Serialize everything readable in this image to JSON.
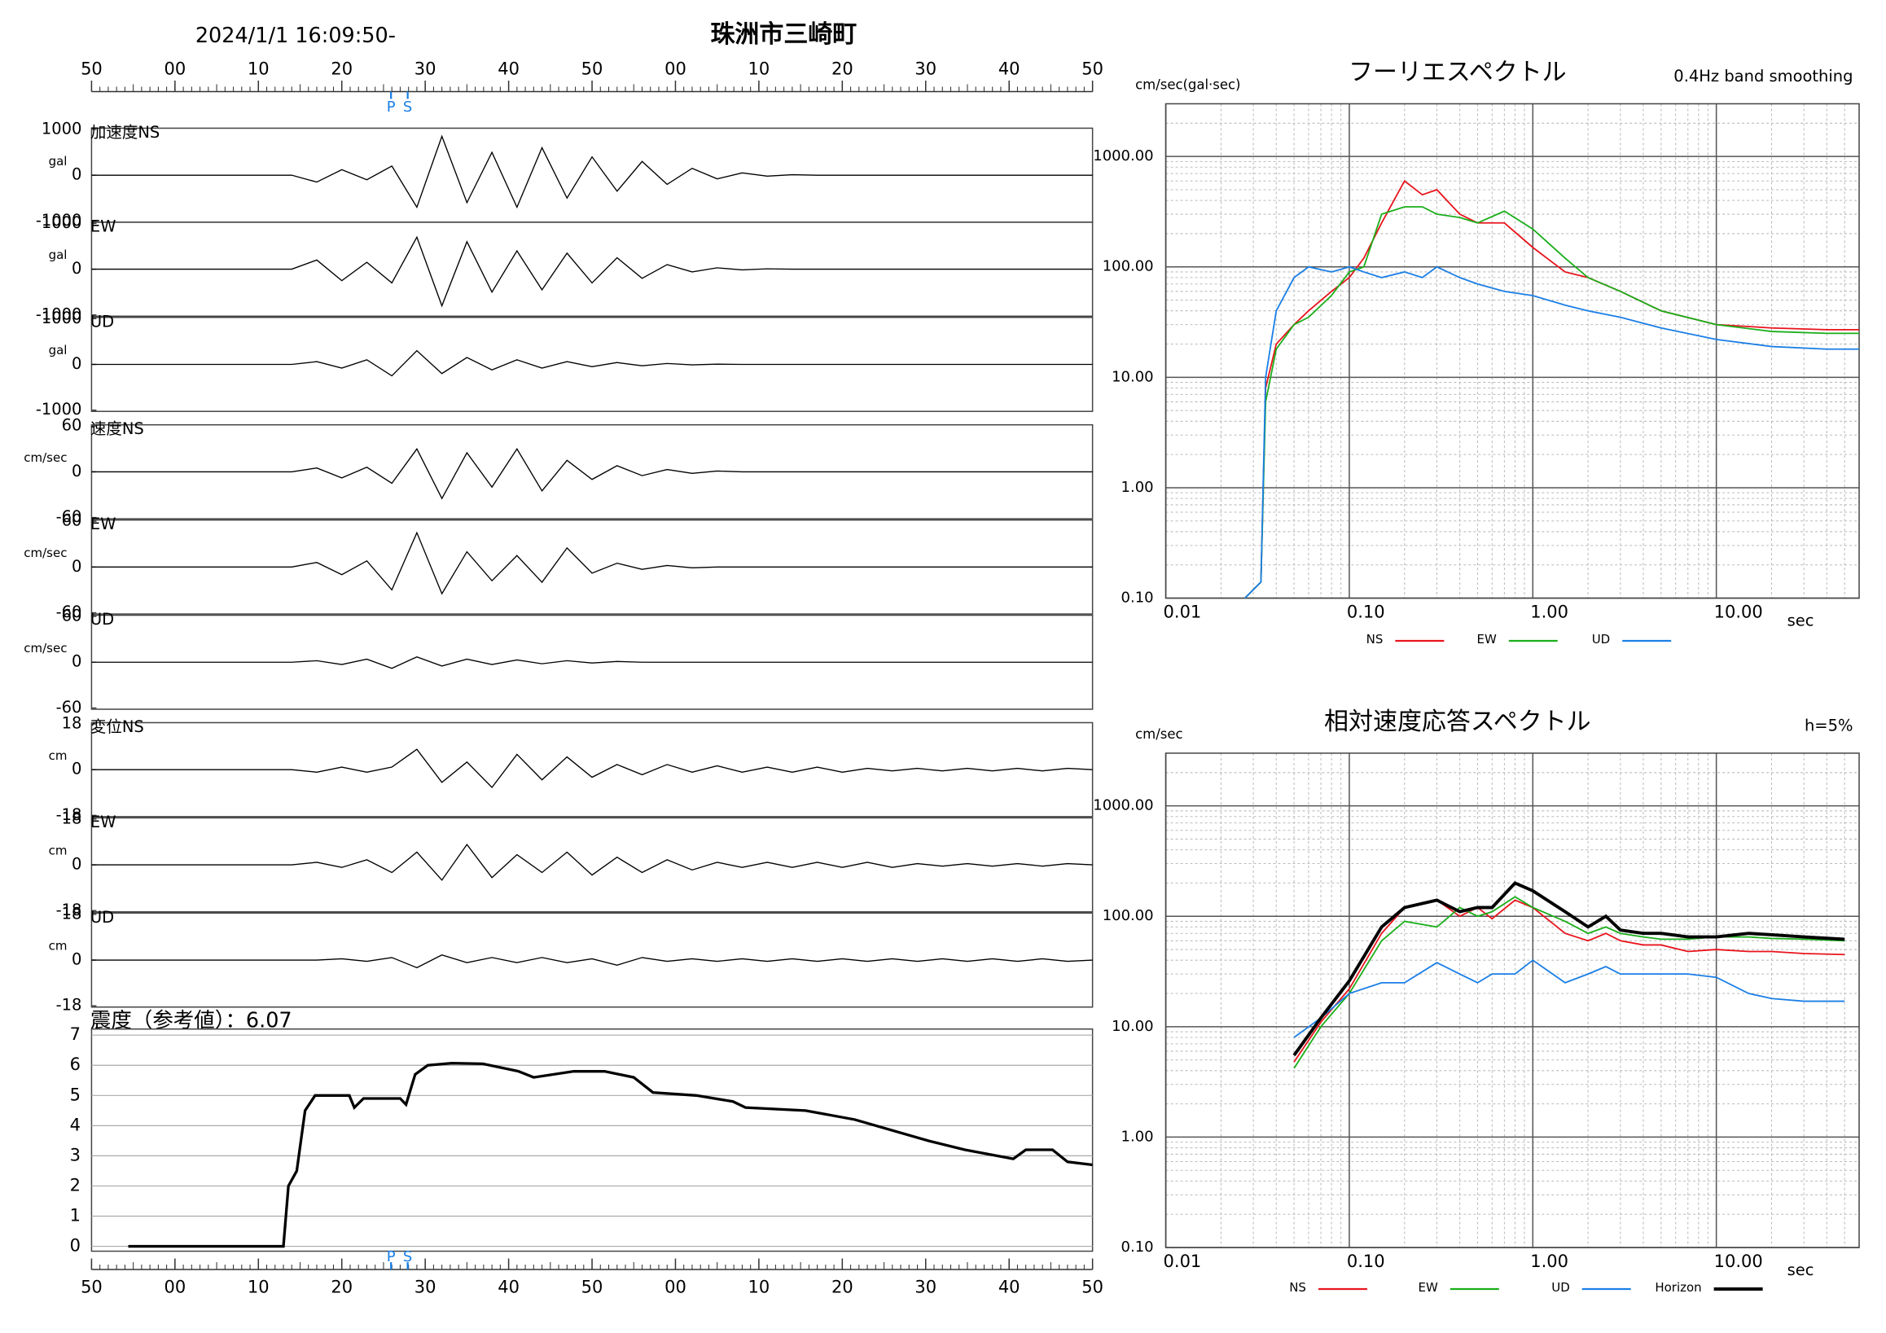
{
  "chart_data": [
    {
      "type": "waveform",
      "title": "珠洲市三崎町",
      "subtitle": "2024/1/1 16:09:50-",
      "xlim": [
        0,
        120
      ],
      "xticks": [
        {
          "value": 0,
          "label": "50"
        },
        {
          "value": 10,
          "label": "00"
        },
        {
          "value": 20,
          "label": "10"
        },
        {
          "value": 30,
          "label": "20"
        },
        {
          "value": 40,
          "label": "30"
        },
        {
          "value": 50,
          "label": "40"
        },
        {
          "value": 60,
          "label": "50"
        },
        {
          "value": 70,
          "label": "00"
        },
        {
          "value": 80,
          "label": "10"
        },
        {
          "value": 90,
          "label": "20"
        },
        {
          "value": 100,
          "label": "30"
        },
        {
          "value": 110,
          "label": "40"
        },
        {
          "value": 120,
          "label": "50"
        }
      ],
      "phases": [
        {
          "label": "P",
          "x": 35.9
        },
        {
          "label": "S",
          "x": 37.9
        }
      ],
      "x": [
        0,
        3,
        6,
        9,
        12,
        15,
        18,
        21,
        24,
        27,
        30,
        33,
        36,
        39,
        42,
        45,
        48,
        51,
        54,
        57,
        60,
        63,
        66,
        69,
        72,
        75,
        78,
        81,
        84,
        87,
        90,
        93,
        96,
        99,
        102,
        105,
        108,
        111,
        114,
        117,
        120
      ],
      "series": [
        {
          "name": "加速度NS",
          "unit": "gal",
          "color": "#000000",
          "ylim": [
            -1000,
            1000
          ],
          "yticks": [
            1000,
            0,
            -1000
          ],
          "values": [
            0,
            0,
            0,
            0,
            0,
            0,
            0,
            0,
            0,
            -150,
            120,
            -100,
            200,
            -700,
            850,
            -600,
            500,
            -700,
            600,
            -500,
            400,
            -350,
            300,
            -200,
            150,
            -80,
            50,
            -20,
            10,
            0,
            0,
            0,
            0,
            0,
            0,
            0,
            0,
            0,
            0,
            0,
            0
          ]
        },
        {
          "name": "EW",
          "unit": "gal",
          "color": "#000000",
          "ylim": [
            -1000,
            1000
          ],
          "yticks": [
            1000,
            0,
            -1000
          ],
          "values": [
            0,
            0,
            0,
            0,
            0,
            0,
            0,
            0,
            0,
            200,
            -250,
            150,
            -300,
            700,
            -800,
            600,
            -500,
            400,
            -450,
            350,
            -300,
            250,
            -200,
            100,
            -60,
            30,
            -15,
            8,
            0,
            0,
            0,
            0,
            0,
            0,
            0,
            0,
            0,
            0,
            0,
            0,
            0
          ]
        },
        {
          "name": "UD",
          "unit": "gal",
          "color": "#000000",
          "ylim": [
            -1000,
            1000
          ],
          "yticks": [
            1000,
            0,
            -1000
          ],
          "values": [
            0,
            0,
            0,
            0,
            0,
            0,
            0,
            0,
            0,
            60,
            -80,
            100,
            -250,
            300,
            -200,
            150,
            -120,
            100,
            -80,
            60,
            -50,
            40,
            -30,
            20,
            -10,
            5,
            0,
            0,
            0,
            0,
            0,
            0,
            0,
            0,
            0,
            0,
            0,
            0,
            0,
            0,
            0
          ]
        },
        {
          "name": "速度NS",
          "unit": "cm/sec",
          "color": "#000000",
          "ylim": [
            -60,
            60
          ],
          "yticks": [
            60,
            0,
            -60
          ],
          "values": [
            0,
            0,
            0,
            0,
            0,
            0,
            0,
            0,
            0,
            5,
            -8,
            6,
            -15,
            30,
            -35,
            25,
            -20,
            30,
            -25,
            15,
            -10,
            8,
            -5,
            3,
            -2,
            1,
            0,
            0,
            0,
            0,
            0,
            0,
            0,
            0,
            0,
            0,
            0,
            0,
            0,
            0,
            0
          ]
        },
        {
          "name": "EW",
          "unit": "cm/sec",
          "color": "#000000",
          "ylim": [
            -60,
            60
          ],
          "yticks": [
            60,
            0,
            -60
          ],
          "values": [
            0,
            0,
            0,
            0,
            0,
            0,
            0,
            0,
            0,
            6,
            -10,
            8,
            -30,
            45,
            -35,
            20,
            -18,
            15,
            -20,
            25,
            -8,
            5,
            -3,
            2,
            -1,
            0,
            0,
            0,
            0,
            0,
            0,
            0,
            0,
            0,
            0,
            0,
            0,
            0,
            0,
            0,
            0
          ]
        },
        {
          "name": "UD",
          "unit": "cm/sec",
          "color": "#000000",
          "ylim": [
            -60,
            60
          ],
          "yticks": [
            60,
            0,
            -60
          ],
          "values": [
            0,
            0,
            0,
            0,
            0,
            0,
            0,
            0,
            0,
            2,
            -3,
            4,
            -8,
            7,
            -5,
            4,
            -3,
            3,
            -2,
            2,
            -1,
            1,
            0,
            0,
            0,
            0,
            0,
            0,
            0,
            0,
            0,
            0,
            0,
            0,
            0,
            0,
            0,
            0,
            0,
            0,
            0
          ]
        },
        {
          "name": "変位NS",
          "unit": "cm",
          "color": "#000000",
          "ylim": [
            -18,
            18
          ],
          "yticks": [
            18,
            0,
            -18
          ],
          "values": [
            0,
            0,
            0,
            0,
            0,
            0,
            0,
            0,
            0,
            -1,
            1,
            -1,
            1,
            8,
            -5,
            3,
            -7,
            6,
            -4,
            5,
            -3,
            2,
            -2,
            2,
            -1,
            1.5,
            -1,
            1,
            -1,
            1,
            -1,
            0.5,
            -0.5,
            0.5,
            -0.5,
            0.5,
            -0.5,
            0.5,
            -0.5,
            0.5,
            0
          ]
        },
        {
          "name": "EW",
          "unit": "cm",
          "color": "#000000",
          "ylim": [
            -18,
            18
          ],
          "yticks": [
            18,
            0,
            -18
          ],
          "values": [
            0,
            0,
            0,
            0,
            0,
            0,
            0,
            0,
            0,
            1,
            -1,
            2,
            -3,
            5,
            -6,
            8,
            -5,
            4,
            -3,
            5,
            -4,
            3,
            -3,
            2,
            -2,
            1,
            -1,
            1,
            -1,
            1,
            -1,
            1,
            -1,
            0.5,
            -0.5,
            0.5,
            -0.5,
            0.5,
            -0.5,
            0.5,
            0
          ]
        },
        {
          "name": "UD",
          "unit": "cm",
          "color": "#000000",
          "ylim": [
            -18,
            18
          ],
          "yticks": [
            18,
            0,
            -18
          ],
          "values": [
            0,
            0,
            0,
            0,
            0,
            0,
            0,
            0,
            0,
            0,
            0.5,
            -0.5,
            1,
            -3,
            2,
            -1,
            1,
            -1,
            1,
            -1,
            0.5,
            -2,
            1,
            -0.5,
            0.5,
            -0.5,
            0.5,
            -0.5,
            0.5,
            -0.5,
            0.5,
            -0.5,
            0.5,
            -0.5,
            0.5,
            -0.5,
            0.5,
            -0.5,
            0.5,
            -0.5,
            0
          ]
        }
      ]
    },
    {
      "type": "step",
      "title": "震度（参考値）：6.07",
      "color": "#000000",
      "grid": true,
      "xlim": [
        0,
        120
      ],
      "xticks": [
        {
          "value": 0,
          "label": "50"
        },
        {
          "value": 10,
          "label": "00"
        },
        {
          "value": 20,
          "label": "10"
        },
        {
          "value": 30,
          "label": "20"
        },
        {
          "value": 40,
          "label": "30"
        },
        {
          "value": 50,
          "label": "40"
        },
        {
          "value": 60,
          "label": "50"
        },
        {
          "value": 70,
          "label": "00"
        },
        {
          "value": 80,
          "label": "10"
        },
        {
          "value": 90,
          "label": "20"
        },
        {
          "value": 100,
          "label": "30"
        },
        {
          "value": 110,
          "label": "40"
        },
        {
          "value": 120,
          "label": "50"
        }
      ],
      "phases": [
        {
          "label": "P",
          "x": 35.9
        },
        {
          "label": "S",
          "x": 37.9
        }
      ],
      "ylim": [
        0,
        7
      ],
      "yticks": [
        0,
        1,
        2,
        3,
        4,
        5,
        6,
        7
      ],
      "x": [
        4.4,
        23,
        23.6,
        24.6,
        25.6,
        26.8,
        30.9,
        31.5,
        32.6,
        37,
        37.7,
        38.8,
        40.3,
        43.2,
        46.9,
        51.2,
        53,
        57.8,
        61.5,
        65,
        67.3,
        72.5,
        76.9,
        78.4,
        85.6,
        91.5,
        100.3,
        104.7,
        110.5,
        112,
        115.2,
        117,
        120
      ],
      "values": [
        0,
        0,
        2,
        2.5,
        4.5,
        5,
        5,
        4.6,
        4.9,
        4.9,
        4.7,
        5.7,
        6,
        6.07,
        6.05,
        5.8,
        5.6,
        5.8,
        5.8,
        5.6,
        5.1,
        5,
        4.8,
        4.6,
        4.5,
        4.2,
        3.5,
        3.2,
        2.9,
        3.2,
        3.2,
        2.8,
        2.7
      ]
    },
    {
      "type": "spectrum",
      "title": "フーリエスペクトル",
      "subtitle": "0.4Hz band smoothing",
      "y_label": "cm/sec(gal·sec)",
      "x_label": "sec",
      "xscale": "log",
      "yscale": "log",
      "grid": true,
      "xlim": [
        0.01,
        60
      ],
      "xticks": [
        {
          "value": 0.01,
          "label": "0.01"
        },
        {
          "value": 0.1,
          "label": "0.10"
        },
        {
          "value": 1,
          "label": "1.00"
        },
        {
          "value": 10,
          "label": "10.00"
        }
      ],
      "ylim": [
        0.1,
        3000
      ],
      "yticks": [
        {
          "value": 0.1,
          "label": "0.10"
        },
        {
          "value": 1,
          "label": "1.00"
        },
        {
          "value": 10,
          "label": "10.00"
        },
        {
          "value": 100,
          "label": "100.00"
        },
        {
          "value": 1000,
          "label": "1000.00"
        }
      ],
      "x": [
        0.027,
        0.033,
        0.035,
        0.04,
        0.05,
        0.06,
        0.08,
        0.1,
        0.12,
        0.15,
        0.2,
        0.25,
        0.3,
        0.4,
        0.5,
        0.7,
        1.0,
        1.5,
        2,
        3,
        5,
        10,
        20,
        40,
        60
      ],
      "series": [
        {
          "name": "NS",
          "color": "#e8141c",
          "values": [
            0.1,
            0.14,
            8,
            20,
            30,
            40,
            60,
            80,
            120,
            250,
            600,
            450,
            500,
            300,
            250,
            250,
            150,
            90,
            80,
            60,
            40,
            30,
            28,
            27,
            27
          ]
        },
        {
          "name": "EW",
          "color": "#1aae1a",
          "values": [
            0.1,
            0.14,
            6,
            18,
            30,
            35,
            55,
            90,
            100,
            300,
            350,
            350,
            300,
            280,
            250,
            320,
            220,
            120,
            80,
            60,
            40,
            30,
            26,
            25,
            25
          ]
        },
        {
          "name": "UD",
          "color": "#1a7fe6",
          "values": [
            0.1,
            0.14,
            10,
            40,
            80,
            100,
            90,
            100,
            90,
            80,
            90,
            80,
            100,
            80,
            70,
            60,
            55,
            45,
            40,
            35,
            28,
            22,
            19,
            18,
            18
          ]
        }
      ]
    },
    {
      "type": "spectrum",
      "title": "相対速度応答スペクトル",
      "subtitle": "h=5%",
      "y_label": "cm/sec",
      "x_label": "sec",
      "xscale": "log",
      "yscale": "log",
      "grid": true,
      "xlim": [
        0.01,
        60
      ],
      "xticks": [
        {
          "value": 0.01,
          "label": "0.01"
        },
        {
          "value": 0.1,
          "label": "0.10"
        },
        {
          "value": 1,
          "label": "1.00"
        },
        {
          "value": 10,
          "label": "10.00"
        }
      ],
      "ylim": [
        0.1,
        3000
      ],
      "yticks": [
        {
          "value": 0.1,
          "label": "0.10"
        },
        {
          "value": 1,
          "label": "1.00"
        },
        {
          "value": 10,
          "label": "10.00"
        },
        {
          "value": 100,
          "label": "100.00"
        },
        {
          "value": 1000,
          "label": "1000.00"
        }
      ],
      "x": [
        0.05,
        0.07,
        0.1,
        0.15,
        0.2,
        0.3,
        0.4,
        0.5,
        0.6,
        0.8,
        1.0,
        1.5,
        2,
        2.5,
        3,
        4,
        5,
        7,
        10,
        15,
        20,
        30,
        50
      ],
      "series": [
        {
          "name": "NS",
          "color": "#e8141c",
          "values": [
            4.8,
            11,
            22,
            70,
            120,
            140,
            100,
            120,
            95,
            140,
            120,
            70,
            60,
            70,
            60,
            55,
            55,
            48,
            50,
            48,
            48,
            46,
            45
          ]
        },
        {
          "name": "EW",
          "color": "#1aae1a",
          "values": [
            4.2,
            10,
            20,
            60,
            90,
            80,
            120,
            100,
            110,
            150,
            120,
            90,
            70,
            80,
            70,
            65,
            62,
            62,
            65,
            65,
            63,
            62,
            60
          ]
        },
        {
          "name": "UD",
          "color": "#1a7fe6",
          "values": [
            8,
            12,
            20,
            25,
            25,
            38,
            30,
            25,
            30,
            30,
            40,
            25,
            30,
            35,
            30,
            30,
            30,
            30,
            28,
            20,
            18,
            17,
            17
          ]
        },
        {
          "name": "Horizon",
          "color": "#000000",
          "width": 2.6,
          "values": [
            5.5,
            12,
            26,
            80,
            120,
            140,
            110,
            120,
            120,
            200,
            170,
            110,
            80,
            100,
            75,
            70,
            70,
            65,
            65,
            70,
            68,
            65,
            62
          ]
        }
      ]
    }
  ]
}
